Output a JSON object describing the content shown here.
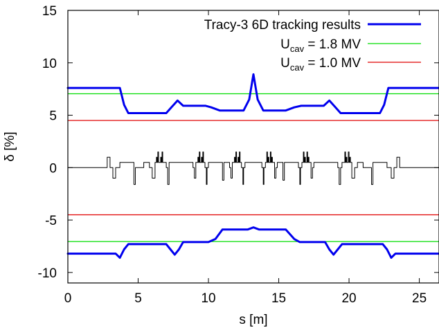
{
  "chart_data": {
    "type": "line",
    "xlabel": "s [m]",
    "ylabel": "δ [%]",
    "xlim": [
      0,
      26.4
    ],
    "ylim": [
      -11,
      15
    ],
    "x_ticks": [
      0,
      5,
      10,
      15,
      20,
      25
    ],
    "y_ticks": [
      -10,
      -5,
      0,
      5,
      10,
      15
    ],
    "x_tick_labels": [
      "0",
      "5",
      "10",
      "15",
      "20",
      "25"
    ],
    "y_tick_labels": [
      "-10",
      "-5",
      "0",
      "5",
      "10",
      "15"
    ],
    "grid": false,
    "legend_position": "top-right",
    "legend": [
      {
        "text": "Tracy-3 6D tracking results",
        "base": "",
        "sub": "",
        "rest": "",
        "color": "#0000ee",
        "width": 3
      },
      {
        "text": "",
        "base": "U",
        "sub": "cav",
        "rest": " = 1.8 MV",
        "color": "#00dd00",
        "width": 1.2
      },
      {
        "text": "",
        "base": "U",
        "sub": "cav",
        "rest": " = 1.0 MV",
        "color": "#e00000",
        "width": 1.2
      }
    ],
    "series": [
      {
        "name": "Tracy-3 6D tracking results (upper)",
        "color": "#0000ee",
        "points": [
          [
            0,
            7.6
          ],
          [
            3.7,
            7.6
          ],
          [
            4.0,
            6.0
          ],
          [
            4.3,
            5.2
          ],
          [
            7.0,
            5.2
          ],
          [
            7.4,
            5.8
          ],
          [
            7.8,
            6.4
          ],
          [
            8.2,
            5.9
          ],
          [
            9.8,
            5.9
          ],
          [
            10.2,
            5.75
          ],
          [
            10.8,
            5.45
          ],
          [
            12.5,
            5.45
          ],
          [
            12.9,
            6.5
          ],
          [
            13.2,
            8.9
          ],
          [
            13.5,
            6.5
          ],
          [
            13.9,
            5.45
          ],
          [
            15.5,
            5.45
          ],
          [
            16.1,
            5.75
          ],
          [
            16.6,
            5.9
          ],
          [
            18.2,
            5.9
          ],
          [
            18.6,
            6.4
          ],
          [
            19.0,
            5.8
          ],
          [
            19.4,
            5.2
          ],
          [
            22.2,
            5.2
          ],
          [
            22.5,
            6.0
          ],
          [
            22.8,
            7.6
          ],
          [
            26.4,
            7.6
          ]
        ]
      },
      {
        "name": "Tracy-3 6D tracking results (lower)",
        "color": "#0000ee",
        "points": [
          [
            0,
            -8.2
          ],
          [
            3.4,
            -8.2
          ],
          [
            3.7,
            -8.6
          ],
          [
            4.0,
            -7.8
          ],
          [
            4.3,
            -7.3
          ],
          [
            7.0,
            -7.3
          ],
          [
            7.3,
            -7.8
          ],
          [
            7.6,
            -8.3
          ],
          [
            7.9,
            -7.8
          ],
          [
            8.2,
            -7.1
          ],
          [
            10.0,
            -7.1
          ],
          [
            10.5,
            -6.8
          ],
          [
            11.0,
            -5.9
          ],
          [
            12.8,
            -5.9
          ],
          [
            13.2,
            -5.7
          ],
          [
            13.6,
            -5.9
          ],
          [
            15.5,
            -5.9
          ],
          [
            16.1,
            -6.8
          ],
          [
            16.5,
            -7.1
          ],
          [
            18.3,
            -7.1
          ],
          [
            18.6,
            -7.8
          ],
          [
            18.9,
            -8.3
          ],
          [
            19.2,
            -7.8
          ],
          [
            19.5,
            -7.3
          ],
          [
            22.4,
            -7.3
          ],
          [
            22.7,
            -7.8
          ],
          [
            23.0,
            -8.6
          ],
          [
            23.3,
            -8.2
          ],
          [
            26.4,
            -8.2
          ]
        ]
      },
      {
        "name": "Ucav = 1.8 MV (upper)",
        "color": "#00dd00",
        "points": [
          [
            0,
            7.05
          ],
          [
            26.4,
            7.05
          ]
        ]
      },
      {
        "name": "Ucav = 1.8 MV (lower)",
        "color": "#00dd00",
        "points": [
          [
            0,
            -7.05
          ],
          [
            26.4,
            -7.05
          ]
        ]
      },
      {
        "name": "Ucav = 1.0 MV (upper)",
        "color": "#e00000",
        "points": [
          [
            0,
            4.5
          ],
          [
            26.4,
            4.5
          ]
        ]
      },
      {
        "name": "Ucav = 1.0 MV (lower)",
        "color": "#e00000",
        "points": [
          [
            0,
            -4.5
          ],
          [
            26.4,
            -4.5
          ]
        ]
      },
      {
        "name": "lattice",
        "color": "#000000",
        "points": [
          [
            0,
            0
          ],
          [
            2.8,
            0
          ],
          [
            2.8,
            1
          ],
          [
            3.0,
            1
          ],
          [
            3.0,
            0
          ],
          [
            3.2,
            0
          ],
          [
            3.2,
            -1
          ],
          [
            3.4,
            -1
          ],
          [
            3.4,
            0
          ],
          [
            3.7,
            0
          ],
          [
            3.7,
            0.5
          ],
          [
            4.7,
            0.5
          ],
          [
            4.7,
            -1.6
          ],
          [
            4.8,
            -1.6
          ],
          [
            4.8,
            0
          ],
          [
            5.4,
            0
          ],
          [
            5.4,
            0.5
          ],
          [
            5.8,
            0.5
          ],
          [
            5.8,
            0
          ],
          [
            6.0,
            0
          ],
          [
            6.0,
            -1
          ],
          [
            6.2,
            -1
          ],
          [
            6.2,
            0.5
          ],
          [
            6.3,
            0.5
          ],
          [
            6.3,
            1
          ],
          [
            6.35,
            1
          ],
          [
            6.35,
            0.5
          ],
          [
            6.4,
            0.5
          ],
          [
            6.4,
            1.5
          ],
          [
            6.45,
            1.5
          ],
          [
            6.45,
            0.5
          ],
          [
            6.6,
            0.5
          ],
          [
            6.6,
            1
          ],
          [
            6.65,
            1
          ],
          [
            6.65,
            0.5
          ],
          [
            6.7,
            0.5
          ],
          [
            6.7,
            1.5
          ],
          [
            6.75,
            1.5
          ],
          [
            6.75,
            0.5
          ],
          [
            7.0,
            0.5
          ],
          [
            7.0,
            0
          ],
          [
            7.1,
            0
          ],
          [
            7.1,
            -1.6
          ],
          [
            7.2,
            -1.6
          ],
          [
            7.2,
            0
          ],
          [
            7.2,
            0.5
          ],
          [
            8.9,
            0.5
          ],
          [
            8.9,
            0
          ],
          [
            9.0,
            0
          ],
          [
            9.0,
            -1
          ],
          [
            9.1,
            -1
          ],
          [
            9.1,
            0.5
          ],
          [
            9.25,
            0.5
          ],
          [
            9.25,
            1
          ],
          [
            9.3,
            1
          ],
          [
            9.3,
            0.5
          ],
          [
            9.35,
            0.5
          ],
          [
            9.35,
            1.5
          ],
          [
            9.4,
            1.5
          ],
          [
            9.4,
            0.5
          ],
          [
            9.5,
            0.5
          ],
          [
            9.5,
            1
          ],
          [
            9.55,
            1
          ],
          [
            9.55,
            0.5
          ],
          [
            9.6,
            0.5
          ],
          [
            9.6,
            1.5
          ],
          [
            9.65,
            1.5
          ],
          [
            9.65,
            0.5
          ],
          [
            9.75,
            0.5
          ],
          [
            9.75,
            0
          ],
          [
            9.85,
            0
          ],
          [
            9.85,
            -1.6
          ],
          [
            9.9,
            -1.6
          ],
          [
            9.9,
            0
          ],
          [
            10.0,
            0
          ],
          [
            10.0,
            0.5
          ],
          [
            11.0,
            0.5
          ],
          [
            11.0,
            -1.2
          ],
          [
            11.1,
            -1.2
          ],
          [
            11.1,
            0.5
          ],
          [
            11.5,
            0.5
          ],
          [
            11.5,
            0
          ],
          [
            11.6,
            0
          ],
          [
            11.6,
            -1
          ],
          [
            11.7,
            -1
          ],
          [
            11.7,
            0.5
          ],
          [
            11.85,
            0.5
          ],
          [
            11.85,
            1
          ],
          [
            11.9,
            1
          ],
          [
            11.9,
            0.5
          ],
          [
            11.95,
            0.5
          ],
          [
            11.95,
            1.5
          ],
          [
            12.0,
            1.5
          ],
          [
            12.0,
            0.5
          ],
          [
            12.1,
            0.5
          ],
          [
            12.1,
            1
          ],
          [
            12.15,
            1
          ],
          [
            12.15,
            0.5
          ],
          [
            12.2,
            0.5
          ],
          [
            12.2,
            1.5
          ],
          [
            12.25,
            1.5
          ],
          [
            12.25,
            0.5
          ],
          [
            12.35,
            0.5
          ],
          [
            12.35,
            0
          ],
          [
            12.45,
            0
          ],
          [
            12.45,
            -1.6
          ],
          [
            12.5,
            -1.6
          ],
          [
            12.5,
            0
          ],
          [
            12.6,
            0
          ],
          [
            12.6,
            0.5
          ],
          [
            13.8,
            0.5
          ],
          [
            13.8,
            0
          ],
          [
            13.9,
            0
          ],
          [
            13.9,
            -1.6
          ],
          [
            13.95,
            -1.6
          ],
          [
            13.95,
            0
          ],
          [
            14.05,
            0
          ],
          [
            14.05,
            0.5
          ],
          [
            14.15,
            0.5
          ],
          [
            14.15,
            1.5
          ],
          [
            14.2,
            1.5
          ],
          [
            14.2,
            0.5
          ],
          [
            14.25,
            0.5
          ],
          [
            14.25,
            1
          ],
          [
            14.3,
            1
          ],
          [
            14.3,
            0.5
          ],
          [
            14.4,
            0.5
          ],
          [
            14.4,
            1.5
          ],
          [
            14.45,
            1.5
          ],
          [
            14.45,
            0.5
          ],
          [
            14.5,
            0.5
          ],
          [
            14.5,
            1
          ],
          [
            14.55,
            1
          ],
          [
            14.55,
            0.5
          ],
          [
            14.7,
            0.5
          ],
          [
            14.7,
            -1
          ],
          [
            14.8,
            -1
          ],
          [
            14.8,
            0
          ],
          [
            14.9,
            0
          ],
          [
            14.9,
            0.5
          ],
          [
            15.3,
            0.5
          ],
          [
            15.3,
            -1.2
          ],
          [
            15.4,
            -1.2
          ],
          [
            15.4,
            0.5
          ],
          [
            16.4,
            0.5
          ],
          [
            16.4,
            0
          ],
          [
            16.5,
            0
          ],
          [
            16.5,
            -1.6
          ],
          [
            16.55,
            -1.6
          ],
          [
            16.55,
            0
          ],
          [
            16.65,
            0
          ],
          [
            16.65,
            0.5
          ],
          [
            16.75,
            0.5
          ],
          [
            16.75,
            1.5
          ],
          [
            16.8,
            1.5
          ],
          [
            16.8,
            0.5
          ],
          [
            16.85,
            0.5
          ],
          [
            16.85,
            1
          ],
          [
            16.9,
            1
          ],
          [
            16.9,
            0.5
          ],
          [
            17.0,
            0.5
          ],
          [
            17.0,
            1.5
          ],
          [
            17.05,
            1.5
          ],
          [
            17.05,
            0.5
          ],
          [
            17.1,
            0.5
          ],
          [
            17.1,
            1
          ],
          [
            17.15,
            1
          ],
          [
            17.15,
            0.5
          ],
          [
            17.3,
            0.5
          ],
          [
            17.3,
            -1
          ],
          [
            17.4,
            -1
          ],
          [
            17.4,
            0
          ],
          [
            17.5,
            0
          ],
          [
            17.5,
            0.5
          ],
          [
            19.2,
            0.5
          ],
          [
            19.2,
            0
          ],
          [
            19.3,
            0
          ],
          [
            19.3,
            -1.6
          ],
          [
            19.4,
            -1.6
          ],
          [
            19.4,
            0
          ],
          [
            19.5,
            0
          ],
          [
            19.5,
            0.5
          ],
          [
            19.7,
            0.5
          ],
          [
            19.7,
            1.5
          ],
          [
            19.75,
            1.5
          ],
          [
            19.75,
            0.5
          ],
          [
            19.8,
            0.5
          ],
          [
            19.8,
            1
          ],
          [
            19.85,
            1
          ],
          [
            19.85,
            0.5
          ],
          [
            19.95,
            0.5
          ],
          [
            19.95,
            1.5
          ],
          [
            20.0,
            1.5
          ],
          [
            20.0,
            0.5
          ],
          [
            20.05,
            0.5
          ],
          [
            20.05,
            1
          ],
          [
            20.1,
            1
          ],
          [
            20.1,
            0.5
          ],
          [
            20.2,
            0.5
          ],
          [
            20.2,
            -1
          ],
          [
            20.4,
            -1
          ],
          [
            20.4,
            0
          ],
          [
            20.6,
            0
          ],
          [
            20.6,
            0.5
          ],
          [
            21.0,
            0.5
          ],
          [
            21.0,
            0
          ],
          [
            21.6,
            0
          ],
          [
            21.6,
            -1.6
          ],
          [
            21.7,
            -1.6
          ],
          [
            21.7,
            0.5
          ],
          [
            22.7,
            0.5
          ],
          [
            22.7,
            0
          ],
          [
            23.0,
            0
          ],
          [
            23.0,
            -1
          ],
          [
            23.2,
            -1
          ],
          [
            23.2,
            0
          ],
          [
            23.4,
            0
          ],
          [
            23.4,
            1
          ],
          [
            23.6,
            1
          ],
          [
            23.6,
            0
          ],
          [
            26.4,
            0
          ]
        ]
      }
    ]
  }
}
